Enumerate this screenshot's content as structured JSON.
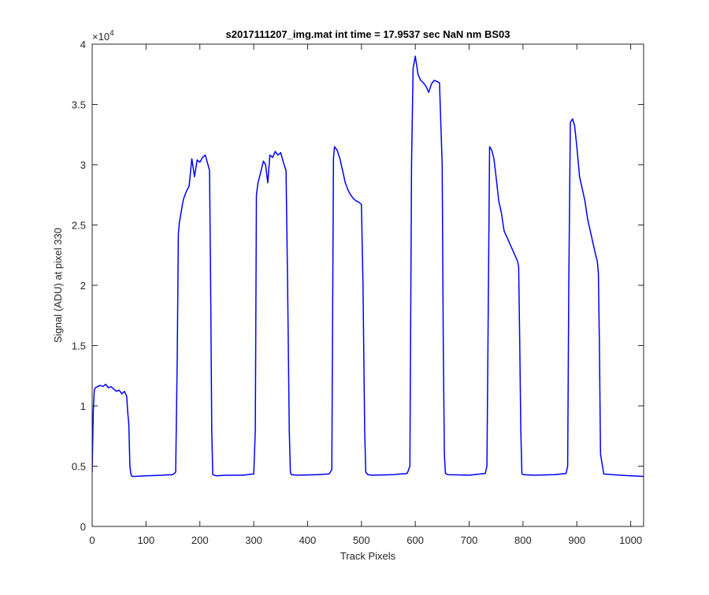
{
  "chart_data": {
    "type": "line",
    "title": "s2017111207_img.mat int time = 17.9537 sec  NaN nm BS03",
    "xlabel": "Track Pixels",
    "ylabel": "Signal (ADU) at pixel 330",
    "y_exponent_label": "×10",
    "y_exponent_power": "4",
    "xlim": [
      0,
      1024
    ],
    "ylim": [
      0,
      40000
    ],
    "xticks": [
      0,
      100,
      200,
      300,
      400,
      500,
      600,
      700,
      800,
      900,
      1000
    ],
    "xtick_labels": [
      "0",
      "100",
      "200",
      "300",
      "400",
      "500",
      "600",
      "700",
      "800",
      "900",
      "1000"
    ],
    "yticks": [
      0,
      5000,
      10000,
      15000,
      20000,
      25000,
      30000,
      35000,
      40000
    ],
    "ytick_labels": [
      "0",
      "0.5",
      "1",
      "1.5",
      "2",
      "2.5",
      "3",
      "3.5",
      "4"
    ],
    "grid": false,
    "color": "#0000ff",
    "series": [
      {
        "x": [
          0,
          2,
          4,
          6,
          10,
          15,
          20,
          25,
          30,
          35,
          40,
          45,
          50,
          55,
          60,
          64,
          66,
          68,
          70,
          72,
          74,
          80,
          100,
          130,
          150,
          155,
          158,
          160,
          162,
          165,
          168,
          170,
          175,
          180,
          185,
          190,
          195,
          200,
          205,
          210,
          215,
          218,
          220,
          222,
          224,
          230,
          250,
          280,
          300,
          303,
          305,
          308,
          312,
          318,
          322,
          326,
          330,
          335,
          340,
          345,
          350,
          355,
          360,
          363,
          366,
          368,
          370,
          380,
          420,
          440,
          445,
          448,
          450,
          455,
          460,
          465,
          470,
          475,
          480,
          485,
          490,
          495,
          500,
          503,
          506,
          508,
          512,
          520,
          560,
          585,
          590,
          593,
          596,
          600,
          605,
          610,
          615,
          620,
          625,
          630,
          635,
          640,
          645,
          650,
          652,
          654,
          656,
          660,
          700,
          730,
          733,
          735,
          738,
          742,
          746,
          750,
          755,
          760,
          765,
          770,
          775,
          780,
          785,
          790,
          792,
          794,
          796,
          798,
          800,
          820,
          860,
          880,
          883,
          885,
          888,
          892,
          896,
          900,
          905,
          910,
          915,
          920,
          925,
          930,
          935,
          938,
          940,
          942,
          944,
          950,
          980,
          1000,
          1024
        ],
        "y": [
          4500,
          9500,
          11300,
          11500,
          11600,
          11700,
          11600,
          11800,
          11500,
          11600,
          11400,
          11200,
          11300,
          11000,
          11200,
          10800,
          9500,
          8500,
          5000,
          4300,
          4150,
          4150,
          4200,
          4250,
          4300,
          4500,
          14000,
          24300,
          25200,
          26000,
          26800,
          27200,
          27800,
          28200,
          30500,
          29000,
          30400,
          30200,
          30600,
          30800,
          30000,
          29500,
          20000,
          8000,
          4300,
          4200,
          4250,
          4250,
          4350,
          8000,
          27500,
          28500,
          29200,
          30300,
          30000,
          28500,
          30800,
          30600,
          31100,
          30800,
          31000,
          30200,
          29500,
          20000,
          8000,
          4500,
          4300,
          4250,
          4300,
          4350,
          4700,
          30500,
          31500,
          31200,
          30500,
          29500,
          28500,
          27900,
          27500,
          27200,
          27000,
          26900,
          26700,
          20000,
          8000,
          4500,
          4300,
          4250,
          4300,
          4400,
          5000,
          30000,
          38000,
          39000,
          37500,
          37000,
          36800,
          36500,
          36000,
          36700,
          37000,
          36900,
          36800,
          30000,
          15000,
          6000,
          4400,
          4300,
          4250,
          4400,
          5000,
          15000,
          31500,
          31200,
          30500,
          29000,
          27000,
          26000,
          24500,
          24000,
          23500,
          23000,
          22500,
          22000,
          21500,
          15000,
          8000,
          4400,
          4300,
          4250,
          4300,
          4400,
          5000,
          20000,
          33500,
          33800,
          33200,
          31500,
          29000,
          28000,
          27000,
          25500,
          24500,
          23500,
          22500,
          22000,
          21000,
          15000,
          6000,
          4350,
          4250,
          4200,
          4150
        ]
      }
    ]
  }
}
